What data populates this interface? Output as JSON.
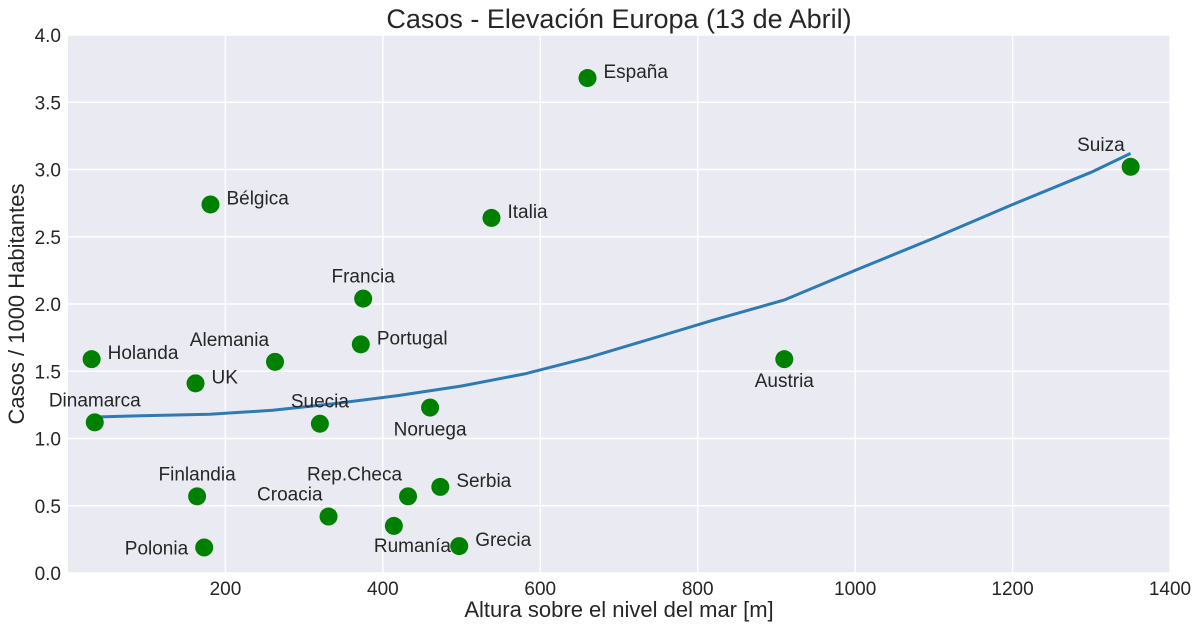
{
  "chart_data": {
    "type": "scatter",
    "title": "Casos - Elevación Europa (13 de Abril)",
    "xlabel": "Altura sobre el nivel del mar [m]",
    "ylabel": "Casos / 1000 Habitantes",
    "xlim": [
      0,
      1400
    ],
    "ylim": [
      0,
      4.0
    ],
    "x_ticks": [
      200,
      400,
      600,
      800,
      1000,
      1200,
      1400
    ],
    "x_tick_labels": [
      "200",
      "400",
      "600",
      "800",
      "1000",
      "1200",
      "1400"
    ],
    "y_ticks": [
      0.0,
      0.5,
      1.0,
      1.5,
      2.0,
      2.5,
      3.0,
      3.5,
      4.0
    ],
    "y_tick_labels": [
      "0.0",
      "0.5",
      "1.0",
      "1.5",
      "2.0",
      "2.5",
      "3.0",
      "3.5",
      "4.0"
    ],
    "grid": true,
    "background_color": "#eaeaf2",
    "point_color": "#008000",
    "line_color": "#2e7bb4",
    "points": [
      {
        "label": "España",
        "x": 660,
        "y": 3.68,
        "anchor": "right"
      },
      {
        "label": "Suiza",
        "x": 1350,
        "y": 3.02,
        "anchor": "upper-left"
      },
      {
        "label": "Bélgica",
        "x": 181,
        "y": 2.74,
        "anchor": "right"
      },
      {
        "label": "Italia",
        "x": 538,
        "y": 2.64,
        "anchor": "right"
      },
      {
        "label": "Francia",
        "x": 375,
        "y": 2.04,
        "anchor": "above"
      },
      {
        "label": "Portugal",
        "x": 372,
        "y": 1.7,
        "anchor": "right"
      },
      {
        "label": "Holanda",
        "x": 30,
        "y": 1.59,
        "anchor": "right"
      },
      {
        "label": "Alemania",
        "x": 263,
        "y": 1.57,
        "anchor": "upper-left"
      },
      {
        "label": "Austria",
        "x": 910,
        "y": 1.59,
        "anchor": "below"
      },
      {
        "label": "UK",
        "x": 162,
        "y": 1.41,
        "anchor": "right"
      },
      {
        "label": "Noruega",
        "x": 460,
        "y": 1.23,
        "anchor": "below"
      },
      {
        "label": "Dinamarca",
        "x": 34,
        "y": 1.12,
        "anchor": "above"
      },
      {
        "label": "Suecia",
        "x": 320,
        "y": 1.11,
        "anchor": "above"
      },
      {
        "label": "Finlandia",
        "x": 164,
        "y": 0.57,
        "anchor": "above"
      },
      {
        "label": "Rep.Checa",
        "x": 432,
        "y": 0.57,
        "anchor": "upper-left"
      },
      {
        "label": "Serbia",
        "x": 473,
        "y": 0.64,
        "anchor": "right"
      },
      {
        "label": "Croacia",
        "x": 331,
        "y": 0.42,
        "anchor": "upper-left"
      },
      {
        "label": "Rumanía",
        "x": 414,
        "y": 0.35,
        "anchor": "lower-left"
      },
      {
        "label": "Grecia",
        "x": 497,
        "y": 0.2,
        "anchor": "right"
      },
      {
        "label": "Polonia",
        "x": 173,
        "y": 0.19,
        "anchor": "left"
      }
    ],
    "trend_line": {
      "x": [
        34,
        100,
        180,
        260,
        340,
        420,
        500,
        580,
        660,
        740,
        820,
        910,
        1000,
        1100,
        1200,
        1300,
        1350
      ],
      "y": [
        1.16,
        1.17,
        1.18,
        1.21,
        1.26,
        1.32,
        1.39,
        1.48,
        1.6,
        1.74,
        1.88,
        2.03,
        2.25,
        2.49,
        2.74,
        2.98,
        3.12
      ]
    }
  }
}
